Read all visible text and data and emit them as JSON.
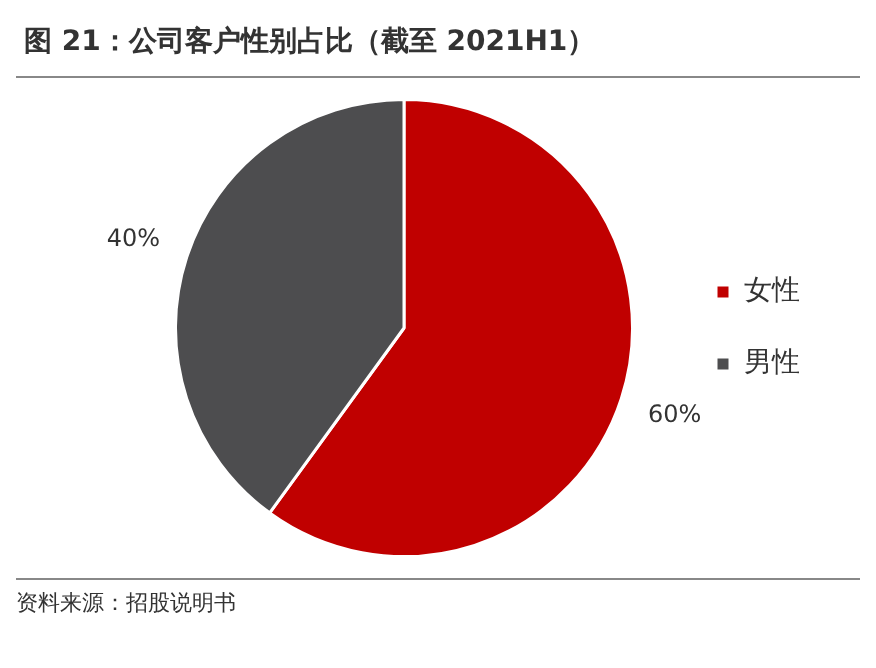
{
  "chart_data": {
    "type": "pie",
    "title": "图 21：公司客户性别占比（截至 2021H1）",
    "categories": [
      "女性",
      "男性"
    ],
    "values": [
      60,
      40
    ],
    "colors": [
      "#c00000",
      "#4d4d4f"
    ],
    "value_labels": [
      "60%",
      "40%"
    ],
    "legend": "right",
    "annotations": [
      "资料来源：招股说明书"
    ]
  }
}
